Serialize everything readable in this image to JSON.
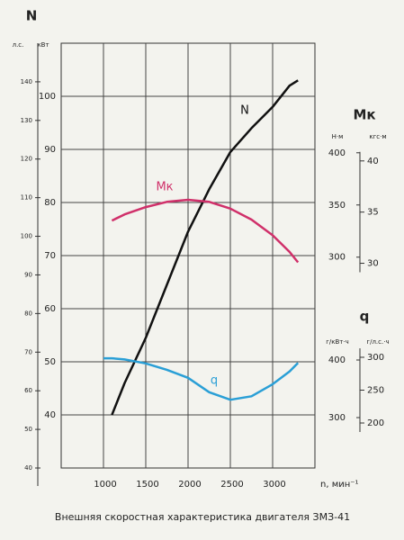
{
  "chart_data": {
    "type": "line",
    "title": "Внешняя скоростная характеристика двигателя ЗМЗ-41",
    "x_label": "n, мин⁻¹",
    "y_label": "N",
    "y_unit": "кВт",
    "xlim": [
      500,
      3500
    ],
    "xticks": [
      1000,
      1500,
      2000,
      2500,
      3000
    ],
    "ylim": [
      30,
      110
    ],
    "yticks": [
      40,
      50,
      60,
      70,
      80,
      90,
      100
    ],
    "grid": true,
    "hp_axis": {
      "unit": "л.с.",
      "ylim": [
        40,
        150
      ],
      "yticks": [
        40,
        50,
        60,
        70,
        80,
        90,
        100,
        110,
        120,
        130,
        140
      ]
    },
    "right_axes": [
      {
        "label": "Мк",
        "units": [
          {
            "unit": "Н·м",
            "ylim": [
              98,
              505
            ],
            "yticks": [
              300,
              350,
              400
            ]
          },
          {
            "unit": "кгс·м",
            "ylim": [
              10,
              51.5
            ],
            "yticks": [
              30,
              35,
              40
            ]
          }
        ]
      },
      {
        "label": "q",
        "units": [
          {
            "unit": "г/кВт·ч",
            "ylim": [
              212.5,
              950
            ],
            "yticks": [
              300,
              400
            ]
          },
          {
            "unit": "г/л.с.·ч",
            "ylim": [
              131.5,
              778
            ],
            "yticks": [
              200,
              250,
              300
            ]
          }
        ]
      }
    ],
    "x": [
      1000,
      1100,
      1250,
      1500,
      1750,
      2000,
      2250,
      2500,
      2750,
      3000,
      3200,
      3300
    ],
    "series": [
      {
        "name": "N",
        "color": "#111111",
        "values": [
          null,
          40,
          46,
          54.5,
          64.5,
          74.5,
          82.5,
          89.5,
          94,
          98,
          102,
          103
        ]
      },
      {
        "name": "Мк",
        "color": "#d0306a",
        "right_axis": 0,
        "values": [
          null,
          335,
          341,
          348,
          353,
          355,
          353,
          346.5,
          336,
          321,
          305,
          295
        ]
      },
      {
        "name": "q",
        "color": "#2a9fd6",
        "right_axis": 1,
        "values": [
          403,
          403,
          401,
          394,
          383,
          369,
          344,
          331,
          337,
          358,
          380,
          395
        ]
      }
    ]
  }
}
